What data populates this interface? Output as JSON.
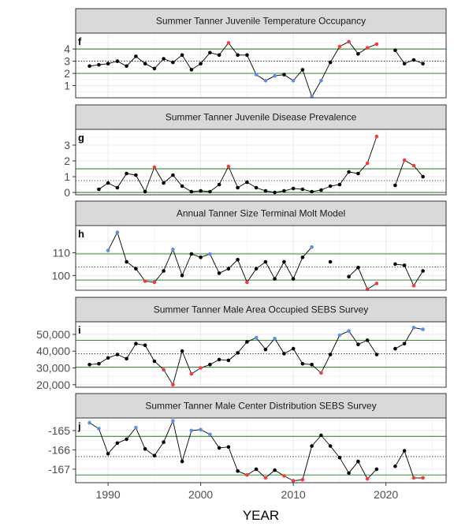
{
  "chart_data": [
    {
      "type": "line",
      "tag": "f",
      "title": "Summer Tanner Juvenile Temperature Occupancy",
      "ylim": [
        0.0,
        5.3
      ],
      "yticks": [
        1,
        2,
        3,
        4
      ],
      "ytick_labels": [
        "1",
        "2",
        "3",
        "4"
      ],
      "ref_lines": {
        "upper": 4.0,
        "mean": 3.0,
        "lower": 2.0
      },
      "x": [
        1988,
        1989,
        1990,
        1991,
        1992,
        1993,
        1994,
        1995,
        1996,
        1997,
        1998,
        1999,
        2000,
        2001,
        2002,
        2003,
        2004,
        2005,
        2006,
        2007,
        2008,
        2009,
        2010,
        2011,
        2012,
        2013,
        2014,
        2015,
        2016,
        2017,
        2018,
        2019,
        2020,
        2021,
        2022,
        2023,
        2024
      ],
      "y": [
        2.6,
        2.7,
        2.8,
        3.0,
        2.6,
        3.4,
        2.8,
        2.4,
        3.2,
        2.9,
        3.5,
        2.3,
        2.8,
        3.7,
        3.5,
        4.5,
        3.5,
        3.5,
        1.9,
        1.4,
        1.8,
        1.9,
        1.4,
        2.3,
        0.1,
        1.4,
        2.9,
        4.2,
        4.6,
        3.6,
        4.1,
        4.4,
        null,
        3.9,
        2.8,
        3.1,
        2.8
      ],
      "colors": [
        "k",
        "k",
        "k",
        "k",
        "k",
        "k",
        "k",
        "k",
        "k",
        "k",
        "k",
        "k",
        "k",
        "k",
        "k",
        "r",
        "k",
        "k",
        "b",
        "b",
        "b",
        "k",
        "b",
        "k",
        "b",
        "b",
        "k",
        "r",
        "r",
        "k",
        "r",
        "r",
        null,
        "k",
        "k",
        "k",
        "k"
      ]
    },
    {
      "type": "line",
      "tag": "g",
      "title": "Summer Tanner Juvenile Disease Prevalence",
      "ylim": [
        -0.15,
        4.0
      ],
      "yticks": [
        0,
        1,
        2,
        3
      ],
      "ytick_labels": [
        "0",
        "1",
        "2",
        "3"
      ],
      "ref_lines": {
        "upper": 1.5,
        "mean": 0.75,
        "lower": 0.0
      },
      "x": [
        1988,
        1989,
        1990,
        1991,
        1992,
        1993,
        1994,
        1995,
        1996,
        1997,
        1998,
        1999,
        2000,
        2001,
        2002,
        2003,
        2004,
        2005,
        2006,
        2007,
        2008,
        2009,
        2010,
        2011,
        2012,
        2013,
        2014,
        2015,
        2016,
        2017,
        2018,
        2019,
        2020,
        2021,
        2022,
        2023,
        2024
      ],
      "y": [
        null,
        0.2,
        0.6,
        0.3,
        1.2,
        1.1,
        0.05,
        1.6,
        0.6,
        1.1,
        0.4,
        0.05,
        0.1,
        0.05,
        0.5,
        1.65,
        0.3,
        0.65,
        0.3,
        0.1,
        0.0,
        0.1,
        0.25,
        0.2,
        0.05,
        0.15,
        0.4,
        0.5,
        1.3,
        1.2,
        1.85,
        3.55,
        null,
        0.45,
        2.05,
        1.7,
        1.0
      ],
      "colors": [
        null,
        "k",
        "k",
        "k",
        "k",
        "k",
        "k",
        "r",
        "k",
        "k",
        "k",
        "k",
        "k",
        "k",
        "k",
        "r",
        "k",
        "k",
        "k",
        "k",
        "k",
        "k",
        "k",
        "k",
        "k",
        "k",
        "k",
        "k",
        "k",
        "k",
        "r",
        "r",
        null,
        "k",
        "r",
        "r",
        "k"
      ]
    },
    {
      "type": "line",
      "tag": "h",
      "title": "Annual Tanner Size Terminal Molt Model",
      "ylim": [
        93.5,
        122
      ],
      "yticks": [
        100,
        110
      ],
      "ytick_labels": [
        "100",
        "110"
      ],
      "ref_lines": {
        "upper": 109.5,
        "mean": 103.8,
        "lower": 98.0
      },
      "x": [
        1988,
        1989,
        1990,
        1991,
        1992,
        1993,
        1994,
        1995,
        1996,
        1997,
        1998,
        1999,
        2000,
        2001,
        2002,
        2003,
        2004,
        2005,
        2006,
        2007,
        2008,
        2009,
        2010,
        2011,
        2012,
        2013,
        2014,
        2015,
        2016,
        2017,
        2018,
        2019,
        2020,
        2021,
        2022,
        2023,
        2024
      ],
      "y": [
        null,
        null,
        111,
        119,
        106,
        103,
        97.5,
        97,
        102,
        111.5,
        100,
        109.5,
        108,
        109.5,
        101,
        103,
        107,
        97,
        103,
        106,
        98.5,
        106,
        98.5,
        108,
        112.5,
        null,
        106,
        null,
        99.5,
        103.5,
        94,
        96.5,
        null,
        105,
        104.5,
        95.5,
        102
      ],
      "colors": [
        null,
        null,
        "b",
        "b",
        "k",
        "k",
        "r",
        "r",
        "k",
        "b",
        "k",
        "k",
        "k",
        "b",
        "k",
        "k",
        "k",
        "r",
        "k",
        "k",
        "k",
        "k",
        "k",
        "k",
        "b",
        null,
        "k",
        null,
        "k",
        "k",
        "r",
        "r",
        null,
        "k",
        "k",
        "r",
        "k"
      ]
    },
    {
      "type": "line",
      "tag": "i",
      "title": "Summer Tanner Male Area Occupied SEBS Survey",
      "ylim": [
        18500,
        57500
      ],
      "yticks": [
        20000,
        30000,
        40000,
        50000
      ],
      "ytick_labels": [
        "20,000",
        "30,000",
        "40,000",
        "50,000"
      ],
      "ref_lines": {
        "upper": 46500,
        "mean": 38500,
        "lower": 30500
      },
      "x": [
        1988,
        1989,
        1990,
        1991,
        1992,
        1993,
        1994,
        1995,
        1996,
        1997,
        1998,
        1999,
        2000,
        2001,
        2002,
        2003,
        2004,
        2005,
        2006,
        2007,
        2008,
        2009,
        2010,
        2011,
        2012,
        2013,
        2014,
        2015,
        2016,
        2017,
        2018,
        2019,
        2020,
        2021,
        2022,
        2023,
        2024
      ],
      "y": [
        32000,
        32500,
        36000,
        38000,
        35500,
        44500,
        43500,
        34000,
        29000,
        20000,
        40000,
        26500,
        30000,
        32000,
        35000,
        34500,
        39000,
        45500,
        48000,
        41000,
        47500,
        38500,
        41500,
        32500,
        32000,
        27000,
        38000,
        49500,
        52000,
        44000,
        46500,
        38000,
        null,
        41500,
        44500,
        54000,
        53000
      ],
      "colors": [
        "k",
        "k",
        "k",
        "k",
        "k",
        "k",
        "k",
        "k",
        "r",
        "r",
        "k",
        "r",
        "r",
        "k",
        "k",
        "k",
        "k",
        "k",
        "b",
        "k",
        "b",
        "k",
        "k",
        "k",
        "k",
        "r",
        "k",
        "b",
        "b",
        "k",
        "k",
        "k",
        null,
        "k",
        "k",
        "b",
        "b"
      ]
    },
    {
      "type": "line",
      "tag": "j",
      "title": "Summer Tanner Male Center Distribution SEBS Survey",
      "ylim": [
        -167.7,
        -164.35
      ],
      "yticks": [
        -167,
        -166,
        -165
      ],
      "ytick_labels": [
        "-167",
        "-166",
        "-165"
      ],
      "ref_lines": {
        "upper": -165.3,
        "mean": -166.35,
        "lower": -167.3
      },
      "x": [
        1988,
        1989,
        1990,
        1991,
        1992,
        1993,
        1994,
        1995,
        1996,
        1997,
        1998,
        1999,
        2000,
        2001,
        2002,
        2003,
        2004,
        2005,
        2006,
        2007,
        2008,
        2009,
        2010,
        2011,
        2012,
        2013,
        2014,
        2015,
        2016,
        2017,
        2018,
        2019,
        2020,
        2021,
        2022,
        2023,
        2024
      ],
      "y": [
        -164.6,
        -164.9,
        -166.2,
        -165.65,
        -165.45,
        -164.85,
        -165.95,
        -166.3,
        -165.6,
        -164.5,
        -166.6,
        -165.0,
        -164.95,
        -165.2,
        -165.9,
        -165.85,
        -167.1,
        -167.3,
        -167.0,
        -167.45,
        -167.05,
        -167.35,
        -167.6,
        -167.55,
        -165.8,
        -165.25,
        -165.8,
        -166.4,
        -167.2,
        -166.6,
        -167.5,
        -167.0,
        null,
        -166.85,
        -166.05,
        -167.45,
        -167.45
      ],
      "colors": [
        "b",
        "b",
        "k",
        "k",
        "k",
        "b",
        "k",
        "k",
        "k",
        "b",
        "k",
        "b",
        "b",
        "b",
        "k",
        "k",
        "k",
        "r",
        "k",
        "r",
        "k",
        "r",
        "r",
        "r",
        "k",
        "k",
        "k",
        "k",
        "k",
        "k",
        "r",
        "k",
        null,
        "k",
        "k",
        "r",
        "r"
      ]
    }
  ],
  "x_axis": {
    "label": "YEAR",
    "xlim": [
      1986.5,
      2026.5
    ],
    "ticks": [
      1990,
      2000,
      2010,
      2020
    ],
    "tick_labels": [
      "1990",
      "2000",
      "2010",
      "2020"
    ]
  },
  "colors": {
    "k": "#000000",
    "r": "#f8393a",
    "b": "#5b8fe8",
    "ref_line": "#1c7a1c",
    "strip_fill": "#d9d9d9",
    "grid": "#ebebeb",
    "frame": "#333333"
  }
}
